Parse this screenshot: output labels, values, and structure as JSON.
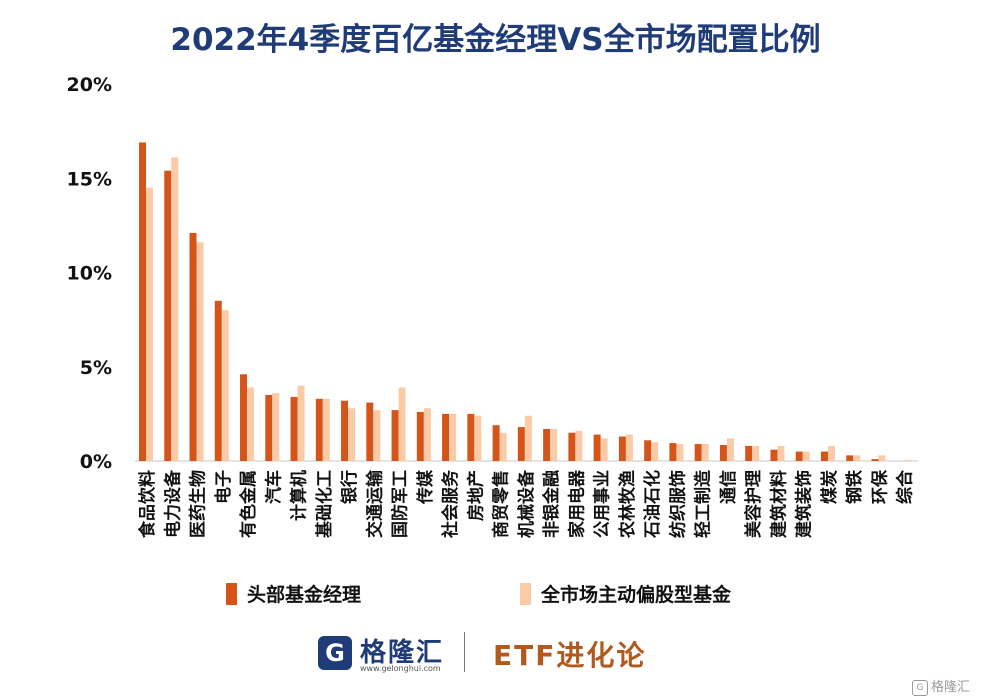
{
  "chart_data": {
    "type": "bar",
    "title": "2022年4季度百亿基金经理VS全市场配置比例",
    "ylim": [
      0,
      20
    ],
    "yticks": [
      "20%",
      "15%",
      "10%",
      "5%",
      "0%"
    ],
    "ytick_values": [
      20,
      15,
      10,
      5,
      0
    ],
    "legend_placement": "bottom",
    "grid": false,
    "categories": [
      "食品饮料",
      "电力设备",
      "医药生物",
      "电子",
      "有色金属",
      "汽车",
      "计算机",
      "基础化工",
      "银行",
      "交通运输",
      "国防军工",
      "传媒",
      "社会服务",
      "房地产",
      "商贸零售",
      "机械设备",
      "非银金融",
      "家用电器",
      "公用事业",
      "农林牧渔",
      "石油石化",
      "纺织服饰",
      "轻工制造",
      "通信",
      "美容护理",
      "建筑材料",
      "建筑装饰",
      "煤炭",
      "钢铁",
      "环保",
      "综合"
    ],
    "series": [
      {
        "name": "头部基金经理",
        "color": "#d4541a",
        "values": [
          16.9,
          15.4,
          12.1,
          8.5,
          4.6,
          3.5,
          3.4,
          3.3,
          3.2,
          3.1,
          2.7,
          2.6,
          2.5,
          2.5,
          1.9,
          1.8,
          1.7,
          1.5,
          1.4,
          1.3,
          1.1,
          0.95,
          0.9,
          0.85,
          0.8,
          0.6,
          0.5,
          0.5,
          0.3,
          0.1,
          0.0
        ]
      },
      {
        "name": "全市场主动偏股型基金",
        "color": "#fbcba8",
        "values": [
          14.5,
          16.1,
          11.6,
          8.0,
          3.9,
          3.6,
          4.0,
          3.3,
          2.8,
          2.7,
          3.9,
          2.8,
          2.5,
          2.4,
          1.5,
          2.4,
          1.7,
          1.6,
          1.2,
          1.4,
          1.0,
          0.9,
          0.9,
          1.2,
          0.8,
          0.8,
          0.5,
          0.8,
          0.3,
          0.3,
          0.05
        ]
      }
    ]
  },
  "legend": {
    "items": [
      {
        "label": "头部基金经理",
        "color": "#d4541a"
      },
      {
        "label": "全市场主动偏股型基金",
        "color": "#fbcba8"
      }
    ]
  },
  "footer": {
    "logo_char": "G",
    "logo_name": "格隆汇",
    "logo_url": "www.gelonghui.com",
    "brand": "ETF进化论"
  },
  "watermark": {
    "icon": "G",
    "text": "格隆汇"
  }
}
